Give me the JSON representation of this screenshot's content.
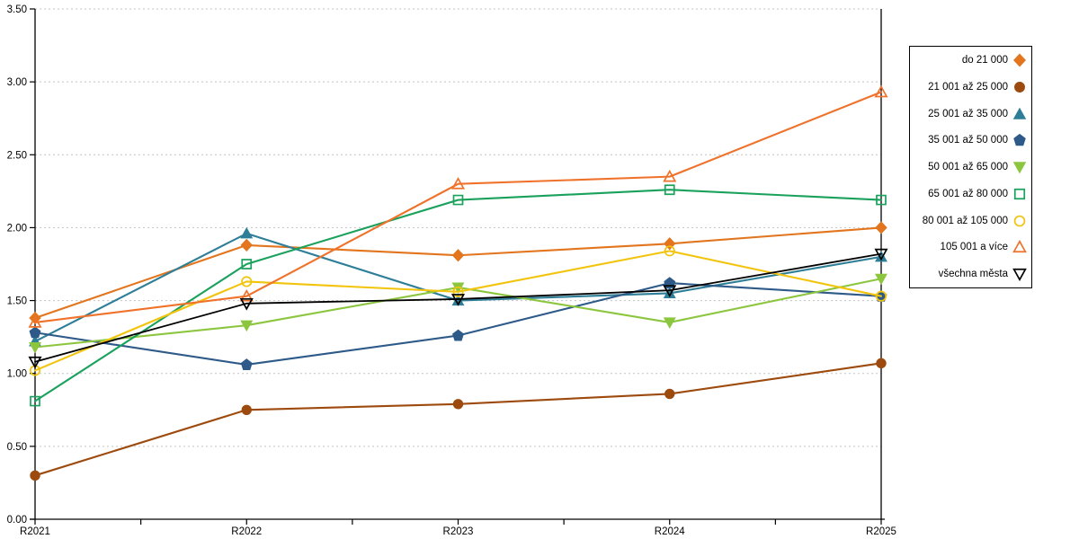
{
  "chart_data": {
    "type": "line",
    "title": "",
    "xlabel": "",
    "ylabel": "",
    "categories": [
      "R2021",
      "R2022",
      "R2023",
      "R2024",
      "R2025"
    ],
    "series": [
      {
        "name": "do 21 000",
        "color": "#E2751D",
        "marker": "diamond",
        "marker_style": "filled",
        "values": [
          1.38,
          1.88,
          1.81,
          1.89,
          2.0
        ]
      },
      {
        "name": "21 001 až 25 000",
        "color": "#9D4A0E",
        "marker": "circle",
        "marker_style": "filled",
        "values": [
          0.3,
          0.75,
          0.79,
          0.86,
          1.07
        ]
      },
      {
        "name": "25 001 až 35 000",
        "color": "#2E7E97",
        "marker": "triangle-up",
        "marker_style": "filled",
        "values": [
          1.22,
          1.96,
          1.5,
          1.55,
          1.8
        ]
      },
      {
        "name": "35 001 až 50 000",
        "color": "#2D5A88",
        "marker": "pentagon",
        "marker_style": "filled",
        "values": [
          1.28,
          1.06,
          1.26,
          1.62,
          1.53
        ]
      },
      {
        "name": "50 001 až 65 000",
        "color": "#8CC63F",
        "marker": "triangle-down",
        "marker_style": "filled",
        "values": [
          1.18,
          1.33,
          1.59,
          1.35,
          1.65
        ]
      },
      {
        "name": "65 001 až 80 000",
        "color": "#1AA15C",
        "marker": "square",
        "marker_style": "open",
        "values": [
          0.81,
          1.75,
          2.19,
          2.26,
          2.19
        ]
      },
      {
        "name": "80 001 až 105 000",
        "color": "#F2C40E",
        "marker": "circle",
        "marker_style": "open",
        "values": [
          1.02,
          1.63,
          1.56,
          1.84,
          1.53
        ]
      },
      {
        "name": "105 001 a více",
        "color": "#F0722A",
        "marker": "triangle-up",
        "marker_style": "open",
        "values": [
          1.35,
          1.53,
          2.3,
          2.35,
          2.93
        ]
      },
      {
        "name": "všechna města",
        "color": "#000000",
        "marker": "triangle-down",
        "marker_style": "open",
        "values": [
          1.08,
          1.48,
          1.51,
          1.57,
          1.82
        ]
      }
    ],
    "ylim": [
      0.0,
      3.5
    ],
    "ytick_step": 0.5,
    "ytick_labels": [
      "0.00",
      "0.50",
      "1.00",
      "1.50",
      "2.00",
      "2.50",
      "3.00",
      "3.50"
    ],
    "grid": "horizontal dashed",
    "gridline_color": "#c3c3c3",
    "axis_color": "#000000",
    "legend_position": "right",
    "legend_border_color": "#000000"
  }
}
